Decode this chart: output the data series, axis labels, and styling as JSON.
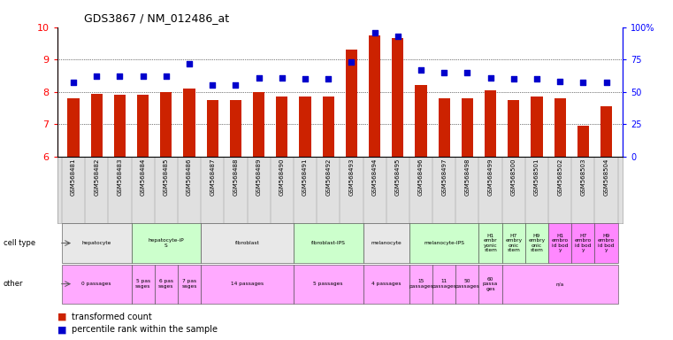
{
  "title": "GDS3867 / NM_012486_at",
  "samples": [
    "GSM568481",
    "GSM568482",
    "GSM568483",
    "GSM568484",
    "GSM568485",
    "GSM568486",
    "GSM568487",
    "GSM568488",
    "GSM568489",
    "GSM568490",
    "GSM568491",
    "GSM568492",
    "GSM568493",
    "GSM568494",
    "GSM568495",
    "GSM568496",
    "GSM568497",
    "GSM568498",
    "GSM568499",
    "GSM568500",
    "GSM568501",
    "GSM568502",
    "GSM568503",
    "GSM568504"
  ],
  "bar_values": [
    7.8,
    7.95,
    7.9,
    7.9,
    8.0,
    8.1,
    7.75,
    7.75,
    8.0,
    7.85,
    7.85,
    7.85,
    9.3,
    9.75,
    9.65,
    8.2,
    7.8,
    7.8,
    8.05,
    7.75,
    7.85,
    7.8,
    6.95,
    7.55
  ],
  "dot_pct": [
    57,
    62,
    62,
    62,
    62,
    72,
    55,
    55,
    61,
    61,
    60,
    60,
    73,
    96,
    93,
    67,
    65,
    65,
    61,
    60,
    60,
    58,
    57,
    57
  ],
  "ylim_left": [
    6,
    10
  ],
  "ylim_right": [
    0,
    100
  ],
  "yticks_left": [
    6,
    7,
    8,
    9,
    10
  ],
  "yticks_right": [
    0,
    25,
    50,
    75,
    100
  ],
  "bar_color": "#cc2200",
  "dot_color": "#0000cc",
  "bg_gsm": "#e0e0e0",
  "cell_type_groups": [
    {
      "label": "hepatocyte",
      "start": 0,
      "end": 3,
      "color": "#e8e8e8"
    },
    {
      "label": "hepatocyte-iP\nS",
      "start": 3,
      "end": 6,
      "color": "#ccffcc"
    },
    {
      "label": "fibroblast",
      "start": 6,
      "end": 10,
      "color": "#e8e8e8"
    },
    {
      "label": "fibroblast-IPS",
      "start": 10,
      "end": 13,
      "color": "#ccffcc"
    },
    {
      "label": "melanocyte",
      "start": 13,
      "end": 15,
      "color": "#e8e8e8"
    },
    {
      "label": "melanocyte-IPS",
      "start": 15,
      "end": 18,
      "color": "#ccffcc"
    },
    {
      "label": "H1\nembr\nyonic\nstem",
      "start": 18,
      "end": 19,
      "color": "#ccffcc"
    },
    {
      "label": "H7\nembry\nonic\nstem",
      "start": 19,
      "end": 20,
      "color": "#ccffcc"
    },
    {
      "label": "H9\nembry\nonic\nstem",
      "start": 20,
      "end": 21,
      "color": "#ccffcc"
    },
    {
      "label": "H1\nembro\nid bod\ny",
      "start": 21,
      "end": 22,
      "color": "#ff88ff"
    },
    {
      "label": "H7\nembro\nid bod\ny",
      "start": 22,
      "end": 23,
      "color": "#ff88ff"
    },
    {
      "label": "H9\nembro\nid bod\ny",
      "start": 23,
      "end": 24,
      "color": "#ff88ff"
    }
  ],
  "other_groups": [
    {
      "label": "0 passages",
      "start": 0,
      "end": 3,
      "color": "#ffaaff"
    },
    {
      "label": "5 pas\nsages",
      "start": 3,
      "end": 4,
      "color": "#ffaaff"
    },
    {
      "label": "6 pas\nsages",
      "start": 4,
      "end": 5,
      "color": "#ffaaff"
    },
    {
      "label": "7 pas\nsages",
      "start": 5,
      "end": 6,
      "color": "#ffaaff"
    },
    {
      "label": "14 passages",
      "start": 6,
      "end": 10,
      "color": "#ffaaff"
    },
    {
      "label": "5 passages",
      "start": 10,
      "end": 13,
      "color": "#ffaaff"
    },
    {
      "label": "4 passages",
      "start": 13,
      "end": 15,
      "color": "#ffaaff"
    },
    {
      "label": "15\npassages",
      "start": 15,
      "end": 16,
      "color": "#ffaaff"
    },
    {
      "label": "11\npassages",
      "start": 16,
      "end": 17,
      "color": "#ffaaff"
    },
    {
      "label": "50\npassages",
      "start": 17,
      "end": 18,
      "color": "#ffaaff"
    },
    {
      "label": "60\npassa\nges",
      "start": 18,
      "end": 19,
      "color": "#ffaaff"
    },
    {
      "label": "n/a",
      "start": 19,
      "end": 24,
      "color": "#ffaaff"
    }
  ],
  "legend_items": [
    {
      "color": "#cc2200",
      "label": "transformed count"
    },
    {
      "color": "#0000cc",
      "label": "percentile rank within the sample"
    }
  ]
}
